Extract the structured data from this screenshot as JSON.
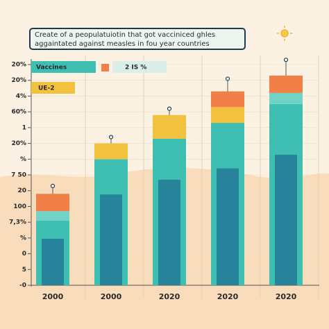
{
  "chart_data": {
    "type": "stacked-bar",
    "title": "Create of a peopulatuiotin that got vacciniced ghles aggaintated against measles in fou year countries",
    "categories": [
      "2000",
      "2000",
      "2020",
      "2020",
      "2020"
    ],
    "series": [
      {
        "name": "Vaccines",
        "color": "#3fbfb1",
        "values": [
          4.1,
          8.0,
          9.3,
          10.3,
          11.5
        ]
      },
      {
        "color": "#6fd3c6",
        "values": [
          0.6,
          null,
          null,
          null,
          0.7
        ]
      },
      {
        "name": "UE-2",
        "color": "#f2c23e",
        "values": [
          null,
          1.0,
          1.5,
          1.0,
          null
        ]
      },
      {
        "name": "2 IS %",
        "color": "#f08048",
        "values": [
          1.1,
          null,
          null,
          1.0,
          1.1
        ]
      }
    ],
    "markers": [
      6.3,
      9.4,
      11.2,
      13.1,
      14.3
    ],
    "ylim": [
      0,
      14
    ],
    "yticks": [
      {
        "value": 0,
        "label": "-0"
      },
      {
        "value": 1,
        "label": "5"
      },
      {
        "value": 2,
        "label": "0"
      },
      {
        "value": 3,
        "label": "%"
      },
      {
        "value": 4,
        "label": "7,3%"
      },
      {
        "value": 5,
        "label": "100"
      },
      {
        "value": 6,
        "label": "20"
      },
      {
        "value": 7,
        "label": "7 50"
      },
      {
        "value": 8,
        "label": "%"
      },
      {
        "value": 9,
        "label": "20%"
      },
      {
        "value": 10,
        "label": "1"
      },
      {
        "value": 11,
        "label": "60%"
      },
      {
        "value": 12,
        "label": "4%"
      },
      {
        "value": 13,
        "label": "20%"
      },
      {
        "value": 14,
        "label": "20%"
      }
    ],
    "grid": true
  }
}
